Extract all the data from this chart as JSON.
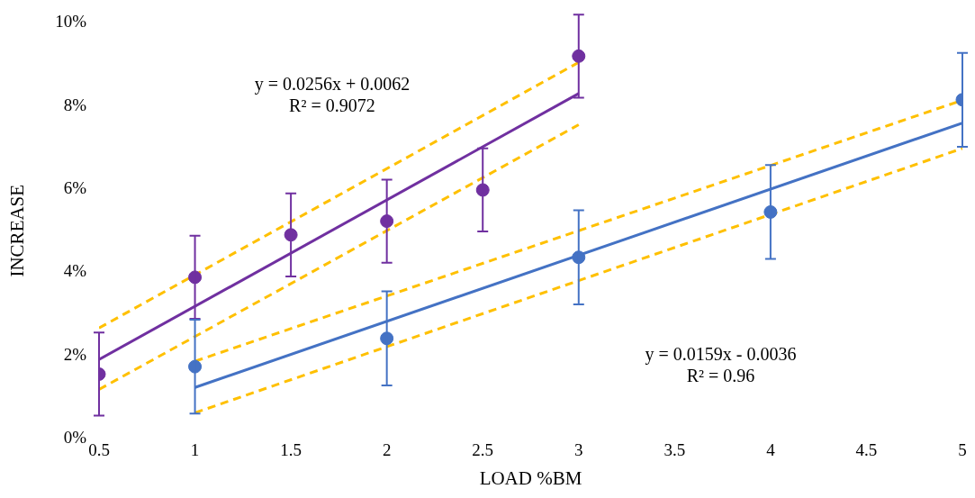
{
  "chart_data": {
    "type": "scatter",
    "xlabel": "LOAD %BM",
    "ylabel": "INCREASE",
    "xlim": [
      0.5,
      5
    ],
    "xticks": [
      0.5,
      1,
      1.5,
      2,
      2.5,
      3,
      3.5,
      4,
      4.5,
      5
    ],
    "ylim": [
      0,
      0.1
    ],
    "yticks": [
      {
        "value": 0,
        "label": "0%"
      },
      {
        "value": 0.02,
        "label": "2%"
      },
      {
        "value": 0.04,
        "label": "4%"
      },
      {
        "value": 0.06,
        "label": "6%"
      },
      {
        "value": 0.08,
        "label": "8%"
      },
      {
        "value": 0.1,
        "label": "10%"
      }
    ],
    "grid": false,
    "legend": false,
    "series": [
      {
        "marker": "circle",
        "color": "#7030a0",
        "x": [
          0.5,
          1,
          1.5,
          2,
          2.5,
          3
        ],
        "values": [
          0.0155,
          0.0388,
          0.049,
          0.0523,
          0.0598,
          0.092
        ],
        "errors": [
          0.01,
          0.01,
          0.01,
          0.01,
          0.01,
          0.01
        ]
      },
      {
        "marker": "circle",
        "color": "#4472c4",
        "x": [
          1,
          2,
          3,
          4,
          5
        ],
        "values": [
          0.0173,
          0.0241,
          0.0436,
          0.0545,
          0.0815
        ],
        "errors": [
          0.0113,
          0.0113,
          0.0113,
          0.0113,
          0.0113
        ]
      },
      {
        "type": "line",
        "color": "#7030a0",
        "x": [
          0.5,
          3
        ],
        "values": [
          0.019,
          0.083
        ]
      },
      {
        "type": "line",
        "color": "#4472c4",
        "x": [
          1,
          5
        ],
        "values": [
          0.0123,
          0.0759
        ]
      },
      {
        "type": "line",
        "color": "#ffc000",
        "line_style": "dashed",
        "x": [
          0.5,
          3
        ],
        "values": [
          0.0266,
          0.0905
        ]
      },
      {
        "type": "line",
        "color": "#ffc000",
        "line_style": "dashed",
        "x": [
          0.5,
          3
        ],
        "values": [
          0.0118,
          0.0755
        ]
      },
      {
        "type": "line",
        "color": "#ffc000",
        "line_style": "dashed",
        "x": [
          1,
          5
        ],
        "values": [
          0.0186,
          0.0814
        ]
      },
      {
        "type": "line",
        "color": "#ffc000",
        "line_style": "dashed",
        "x": [
          1,
          5
        ],
        "values": [
          0.0062,
          0.0698
        ]
      }
    ],
    "annotations": [
      "y = 0.0256x + 0.0062\nR² = 0.9072",
      "y = 0.0159x - 0.0036\nR² = 0.96"
    ]
  }
}
